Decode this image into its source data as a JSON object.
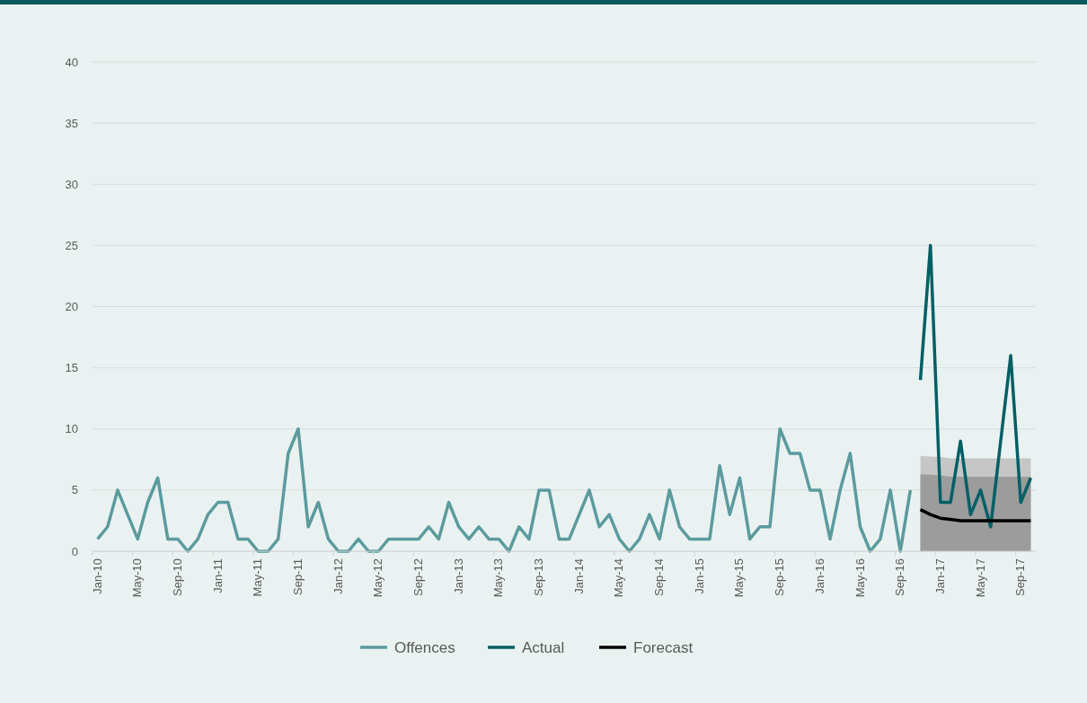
{
  "chart_data": {
    "type": "line",
    "categories": [
      "Jan-10",
      null,
      null,
      null,
      "May-10",
      null,
      null,
      null,
      "Sep-10",
      null,
      null,
      null,
      "Jan-11",
      null,
      null,
      null,
      "May-11",
      null,
      null,
      null,
      "Sep-11",
      null,
      null,
      null,
      "Jan-12",
      null,
      null,
      null,
      "May-12",
      null,
      null,
      null,
      "Sep-12",
      null,
      null,
      null,
      "Jan-13",
      null,
      null,
      null,
      "May-13",
      null,
      null,
      null,
      "Sep-13",
      null,
      null,
      null,
      "Jan-14",
      null,
      null,
      null,
      "May-14",
      null,
      null,
      null,
      "Sep-14",
      null,
      null,
      null,
      "Jan-15",
      null,
      null,
      null,
      "May-15",
      null,
      null,
      null,
      "Sep-15",
      null,
      null,
      null,
      "Jan-16",
      null,
      null,
      null,
      "May-16",
      null,
      null,
      null,
      "Sep-16",
      null,
      null,
      null,
      "Jan-17",
      null,
      null,
      null,
      "May-17",
      null,
      null,
      null,
      "Sep-17",
      null
    ],
    "series": [
      {
        "type": "area",
        "color": "#c6c6c6",
        "values": [
          null,
          null,
          null,
          null,
          null,
          null,
          null,
          null,
          null,
          null,
          null,
          null,
          null,
          null,
          null,
          null,
          null,
          null,
          null,
          null,
          null,
          null,
          null,
          null,
          null,
          null,
          null,
          null,
          null,
          null,
          null,
          null,
          null,
          null,
          null,
          null,
          null,
          null,
          null,
          null,
          null,
          null,
          null,
          null,
          null,
          null,
          null,
          null,
          null,
          null,
          null,
          null,
          null,
          null,
          null,
          null,
          null,
          null,
          null,
          null,
          null,
          null,
          null,
          null,
          null,
          null,
          null,
          null,
          null,
          null,
          null,
          null,
          null,
          null,
          null,
          null,
          null,
          null,
          null,
          null,
          null,
          null,
          7.8,
          7.75,
          7.7,
          7.6,
          7.6,
          7.6,
          7.6,
          7.6,
          7.6,
          7.6,
          7.6,
          7.6
        ]
      },
      {
        "type": "area",
        "color": "#9c9c9c",
        "values": [
          null,
          null,
          null,
          null,
          null,
          null,
          null,
          null,
          null,
          null,
          null,
          null,
          null,
          null,
          null,
          null,
          null,
          null,
          null,
          null,
          null,
          null,
          null,
          null,
          null,
          null,
          null,
          null,
          null,
          null,
          null,
          null,
          null,
          null,
          null,
          null,
          null,
          null,
          null,
          null,
          null,
          null,
          null,
          null,
          null,
          null,
          null,
          null,
          null,
          null,
          null,
          null,
          null,
          null,
          null,
          null,
          null,
          null,
          null,
          null,
          null,
          null,
          null,
          null,
          null,
          null,
          null,
          null,
          null,
          null,
          null,
          null,
          null,
          null,
          null,
          null,
          null,
          null,
          null,
          null,
          null,
          null,
          6.3,
          6.25,
          6.2,
          6.1,
          6.1,
          6.1,
          6.1,
          6.1,
          6.1,
          6.1,
          6.1,
          6.1
        ]
      },
      {
        "name": "Offences",
        "color": "#5b9b9e",
        "values": [
          1,
          2,
          5,
          3,
          1,
          4,
          6,
          1,
          1,
          0,
          1,
          3,
          4,
          4,
          1,
          1,
          0,
          0,
          1,
          8,
          10,
          2,
          4,
          1,
          0,
          0,
          1,
          0,
          0,
          1,
          1,
          1,
          1,
          2,
          1,
          4,
          2,
          1,
          2,
          1,
          1,
          0,
          2,
          1,
          5,
          5,
          1,
          1,
          3,
          5,
          2,
          3,
          1,
          0,
          1,
          3,
          1,
          5,
          2,
          1,
          1,
          1,
          7,
          3,
          6,
          1,
          2,
          2,
          10,
          8,
          8,
          5,
          5,
          1,
          5,
          8,
          2,
          0,
          1,
          5,
          0,
          5,
          null,
          null,
          null,
          null,
          null,
          null,
          null,
          null,
          null,
          null,
          null,
          null
        ]
      },
      {
        "name": "Actual",
        "color": "#035f66",
        "values": [
          null,
          null,
          null,
          null,
          null,
          null,
          null,
          null,
          null,
          null,
          null,
          null,
          null,
          null,
          null,
          null,
          null,
          null,
          null,
          null,
          null,
          null,
          null,
          null,
          null,
          null,
          null,
          null,
          null,
          null,
          null,
          null,
          null,
          null,
          null,
          null,
          null,
          null,
          null,
          null,
          null,
          null,
          null,
          null,
          null,
          null,
          null,
          null,
          null,
          null,
          null,
          null,
          null,
          null,
          null,
          null,
          null,
          null,
          null,
          null,
          null,
          null,
          null,
          null,
          null,
          null,
          null,
          null,
          null,
          null,
          null,
          null,
          null,
          null,
          null,
          null,
          null,
          null,
          null,
          null,
          null,
          null,
          14,
          25,
          4,
          4,
          9,
          3,
          5,
          2,
          9,
          16,
          4,
          6
        ]
      },
      {
        "name": "Forecast",
        "color": "#000000",
        "values": [
          null,
          null,
          null,
          null,
          null,
          null,
          null,
          null,
          null,
          null,
          null,
          null,
          null,
          null,
          null,
          null,
          null,
          null,
          null,
          null,
          null,
          null,
          null,
          null,
          null,
          null,
          null,
          null,
          null,
          null,
          null,
          null,
          null,
          null,
          null,
          null,
          null,
          null,
          null,
          null,
          null,
          null,
          null,
          null,
          null,
          null,
          null,
          null,
          null,
          null,
          null,
          null,
          null,
          null,
          null,
          null,
          null,
          null,
          null,
          null,
          null,
          null,
          null,
          null,
          null,
          null,
          null,
          null,
          null,
          null,
          null,
          null,
          null,
          null,
          null,
          null,
          null,
          null,
          null,
          null,
          null,
          null,
          3.4,
          3.0,
          2.7,
          2.6,
          2.5,
          2.5,
          2.5,
          2.5,
          2.5,
          2.5,
          2.5,
          2.5
        ]
      }
    ],
    "ylim": [
      0,
      40
    ],
    "yticks": [
      0,
      5,
      10,
      15,
      20,
      25,
      30,
      35,
      40
    ],
    "grid": "y",
    "legend": "bottom",
    "marker": "none",
    "line_style": "solid"
  }
}
